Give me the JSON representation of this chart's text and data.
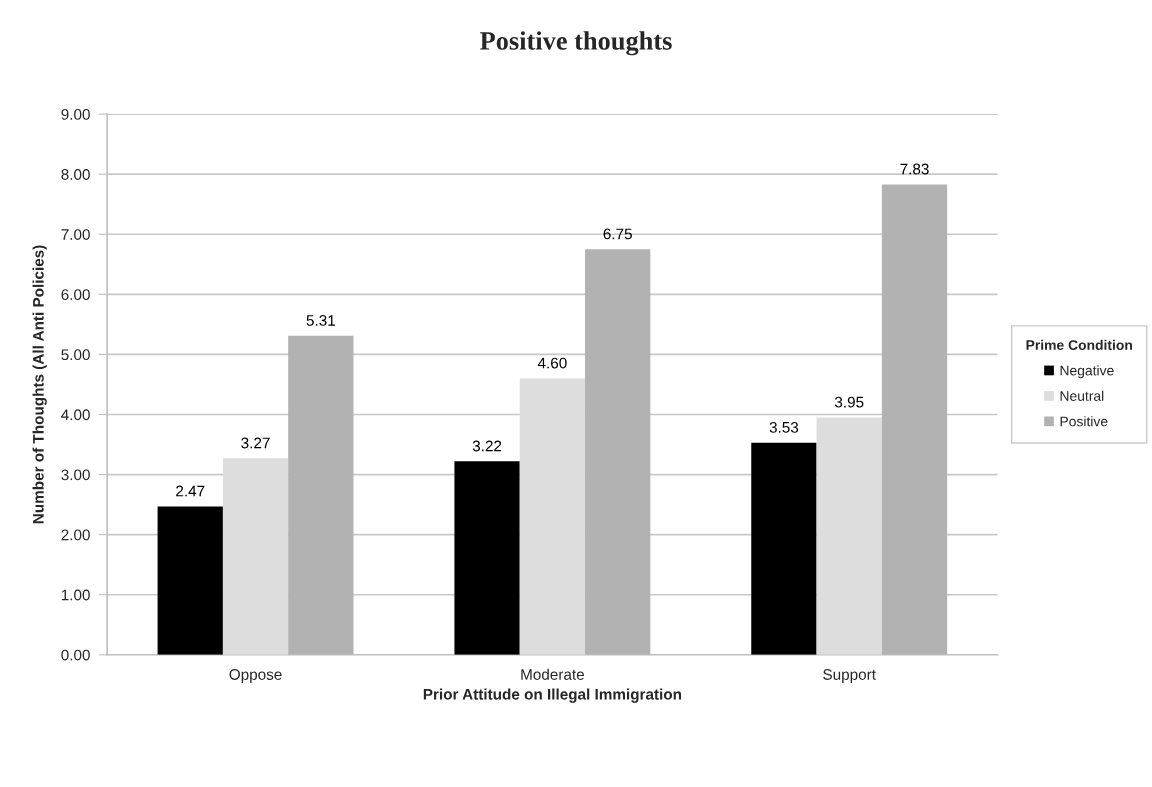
{
  "chart_data": {
    "type": "bar",
    "title": "Positive thoughts",
    "xlabel": "Prior Attitude on Illegal Immigration",
    "ylabel": "Number of Thoughts (All Anti Policies)",
    "legend_title": "Prime Condition",
    "categories": [
      "Oppose",
      "Moderate",
      "Support"
    ],
    "series": [
      {
        "name": "Negative",
        "color": "#000000",
        "values": [
          2.47,
          3.22,
          3.53
        ],
        "value_labels": [
          "2.47",
          "3.22",
          "3.53"
        ]
      },
      {
        "name": "Neutral",
        "color": "#dddddd",
        "values": [
          3.27,
          4.6,
          3.95
        ],
        "value_labels": [
          "3.27",
          "4.60",
          "3.95"
        ]
      },
      {
        "name": "Positive",
        "color": "#b2b2b2",
        "values": [
          5.31,
          6.75,
          7.83
        ],
        "value_labels": [
          "5.31",
          "6.75",
          "7.83"
        ]
      }
    ],
    "ylim": [
      0,
      9
    ],
    "yticks": [
      {
        "value": 0,
        "label": "0.00"
      },
      {
        "value": 1,
        "label": "1.00"
      },
      {
        "value": 2,
        "label": "2.00"
      },
      {
        "value": 3,
        "label": "3.00"
      },
      {
        "value": 4,
        "label": "4.00"
      },
      {
        "value": 5,
        "label": "5.00"
      },
      {
        "value": 6,
        "label": "6.00"
      },
      {
        "value": 7,
        "label": "7.00"
      },
      {
        "value": 8,
        "label": "8.00"
      },
      {
        "value": 9,
        "label": "9.00"
      }
    ],
    "grid": "y",
    "legend": "right"
  }
}
